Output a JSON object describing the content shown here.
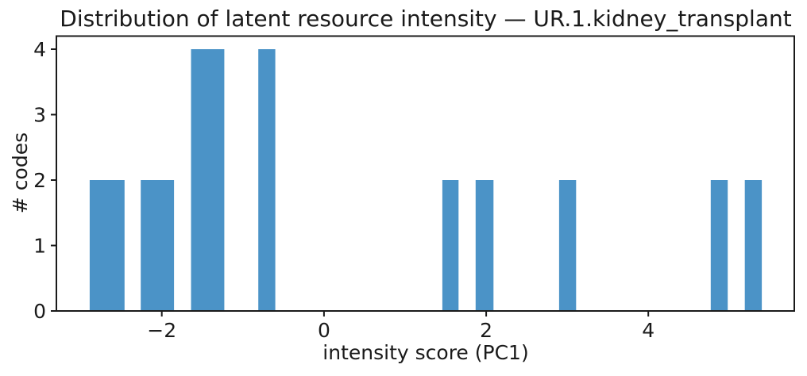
{
  "window": {
    "background": "#ffffff"
  },
  "chart_data": {
    "type": "bar",
    "subtype": "histogram",
    "title": "Distribution of latent resource intensity — UR.1.kidney_transplant",
    "xlabel": "intensity score (PC1)",
    "ylabel": "# codes",
    "xlim": [
      -3.3,
      5.8
    ],
    "ylim": [
      0,
      4.2
    ],
    "grid": false,
    "legend": null,
    "x_ticks": [
      {
        "value": -2,
        "label": "−2"
      },
      {
        "value": 0,
        "label": "0"
      },
      {
        "value": 2,
        "label": "2"
      },
      {
        "value": 4,
        "label": "4"
      }
    ],
    "y_ticks": [
      {
        "value": 0,
        "label": "0"
      },
      {
        "value": 1,
        "label": "1"
      },
      {
        "value": 2,
        "label": "2"
      },
      {
        "value": 3,
        "label": "3"
      },
      {
        "value": 4,
        "label": "4"
      }
    ],
    "bin_width_approx": 0.21,
    "bars": [
      {
        "x0": -2.89,
        "x1": -2.46,
        "count": 2
      },
      {
        "x0": -2.26,
        "x1": -1.85,
        "count": 2
      },
      {
        "x0": -1.64,
        "x1": -1.23,
        "count": 4
      },
      {
        "x0": -0.81,
        "x1": -0.6,
        "count": 4
      },
      {
        "x0": 1.46,
        "x1": 1.66,
        "count": 2
      },
      {
        "x0": 1.87,
        "x1": 2.09,
        "count": 2
      },
      {
        "x0": 2.9,
        "x1": 3.11,
        "count": 2
      },
      {
        "x0": 4.77,
        "x1": 4.98,
        "count": 2
      },
      {
        "x0": 5.19,
        "x1": 5.4,
        "count": 2
      }
    ],
    "colors": {
      "bar": "#4B93C7",
      "axis": "#1a1a1a",
      "text": "#1a1a1a",
      "background": "#ffffff"
    }
  }
}
